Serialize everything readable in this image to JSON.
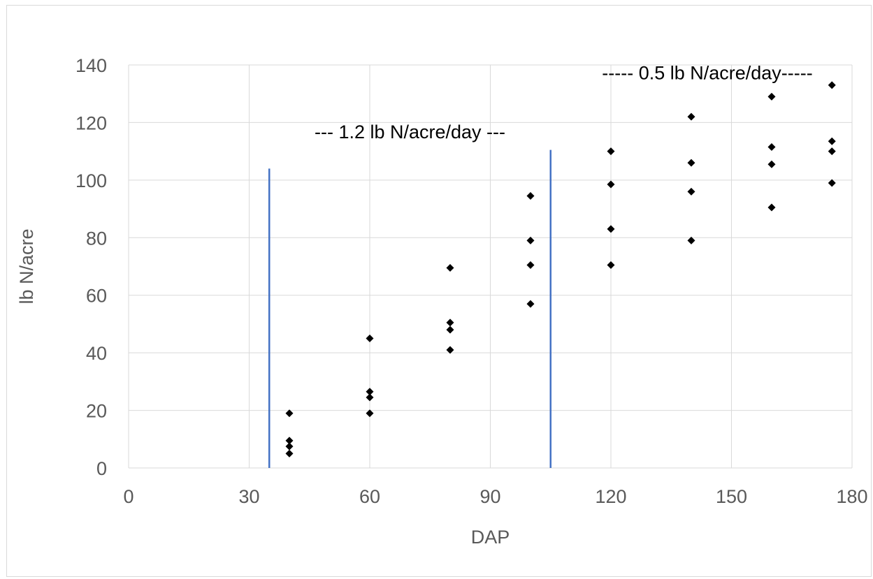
{
  "chart_data": {
    "type": "scatter",
    "title": "",
    "xlabel": "DAP",
    "ylabel": "lb N/acre",
    "xlim": [
      0,
      180
    ],
    "ylim": [
      0,
      140
    ],
    "xticks": [
      0,
      30,
      60,
      90,
      120,
      150,
      180
    ],
    "yticks": [
      0,
      20,
      40,
      60,
      80,
      100,
      120,
      140
    ],
    "grid": true,
    "legend": "none",
    "marker": "diamond",
    "marker_color": "#000000",
    "points": [
      {
        "x": 40,
        "y": 19
      },
      {
        "x": 40,
        "y": 9.5
      },
      {
        "x": 40,
        "y": 7.5
      },
      {
        "x": 40,
        "y": 5
      },
      {
        "x": 60,
        "y": 45
      },
      {
        "x": 60,
        "y": 26.5
      },
      {
        "x": 60,
        "y": 24.5
      },
      {
        "x": 60,
        "y": 19
      },
      {
        "x": 80,
        "y": 69.5
      },
      {
        "x": 80,
        "y": 50.5
      },
      {
        "x": 80,
        "y": 48
      },
      {
        "x": 80,
        "y": 41
      },
      {
        "x": 100,
        "y": 94.5
      },
      {
        "x": 100,
        "y": 79
      },
      {
        "x": 100,
        "y": 70.5
      },
      {
        "x": 100,
        "y": 57
      },
      {
        "x": 120,
        "y": 110
      },
      {
        "x": 120,
        "y": 98.5
      },
      {
        "x": 120,
        "y": 83
      },
      {
        "x": 120,
        "y": 70.5
      },
      {
        "x": 140,
        "y": 122
      },
      {
        "x": 140,
        "y": 106
      },
      {
        "x": 140,
        "y": 96
      },
      {
        "x": 140,
        "y": 79
      },
      {
        "x": 160,
        "y": 129
      },
      {
        "x": 160,
        "y": 111.5
      },
      {
        "x": 160,
        "y": 105.5
      },
      {
        "x": 160,
        "y": 90.5
      },
      {
        "x": 175,
        "y": 133
      },
      {
        "x": 175,
        "y": 113.5
      },
      {
        "x": 175,
        "y": 110
      },
      {
        "x": 175,
        "y": 99
      }
    ],
    "reference_lines": [
      {
        "x": 35,
        "y_from": 0,
        "y_to": 104,
        "color": "#4472c4"
      },
      {
        "x": 105,
        "y_from": 0,
        "y_to": 110.5,
        "color": "#4472c4"
      }
    ],
    "annotations": [
      {
        "text": "--- 1.2 lb N/acre/day ---",
        "x": 70,
        "y": 117
      },
      {
        "text": "----- 0.5 lb N/acre/day-----",
        "x": 144,
        "y": 137.5
      }
    ]
  }
}
